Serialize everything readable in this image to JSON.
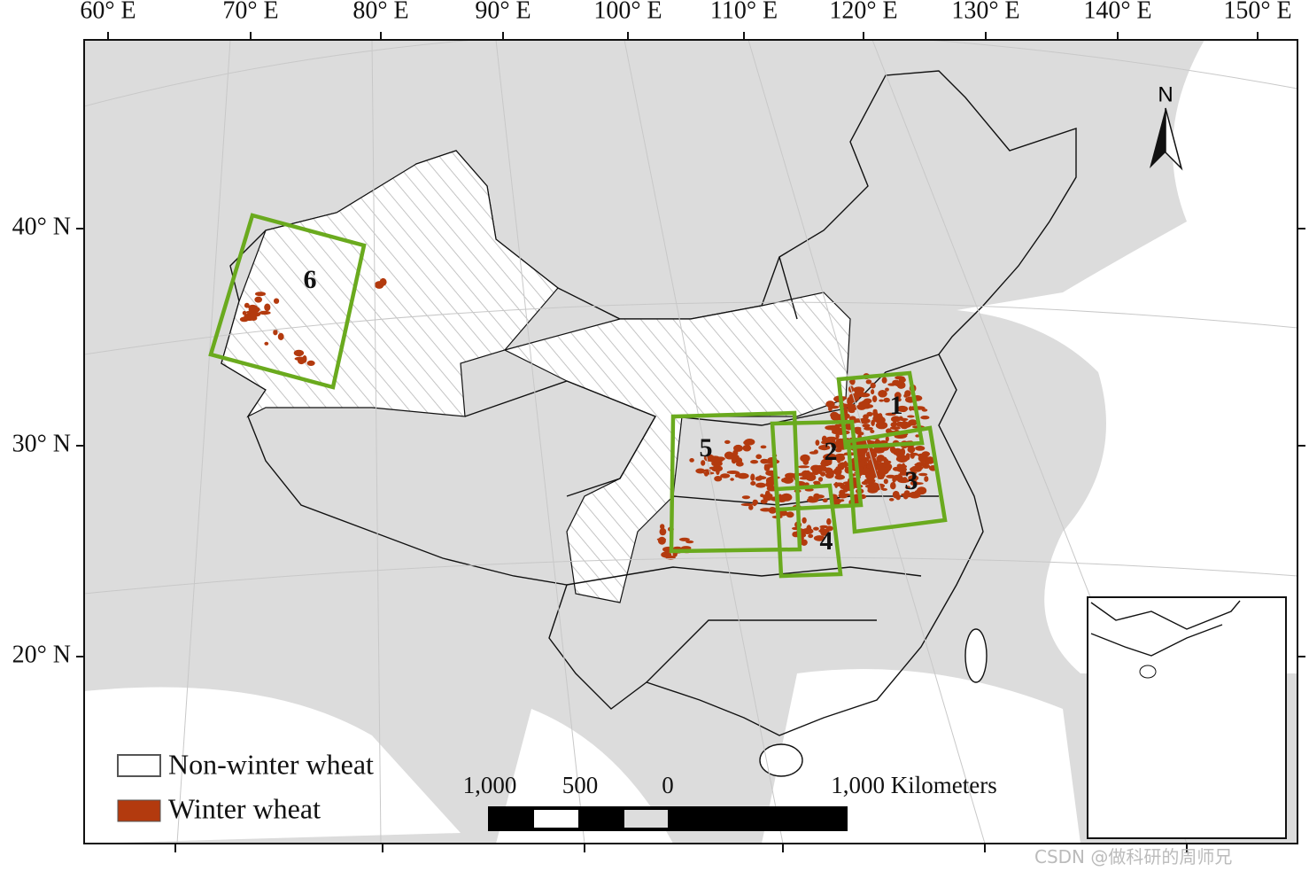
{
  "graticule": {
    "longitude_labels": [
      "60° E",
      "70° E",
      "80° E",
      "90° E",
      "100° E",
      "110° E",
      "120° E",
      "130° E",
      "140° E",
      "150° E"
    ],
    "latitude_labels": [
      "40° N",
      "30° N",
      "20° N"
    ]
  },
  "north_arrow": "N",
  "study_areas": {
    "labels": [
      "1",
      "2",
      "3",
      "4",
      "5",
      "6"
    ]
  },
  "legend": {
    "items": [
      {
        "label": "Non-winter wheat"
      },
      {
        "label": "Winter wheat"
      }
    ]
  },
  "scale_bar": {
    "labels": [
      "1,000",
      "500",
      "0",
      "1,000 Kilometers"
    ]
  },
  "watermark": "CSDN @做科研的周师兄"
}
